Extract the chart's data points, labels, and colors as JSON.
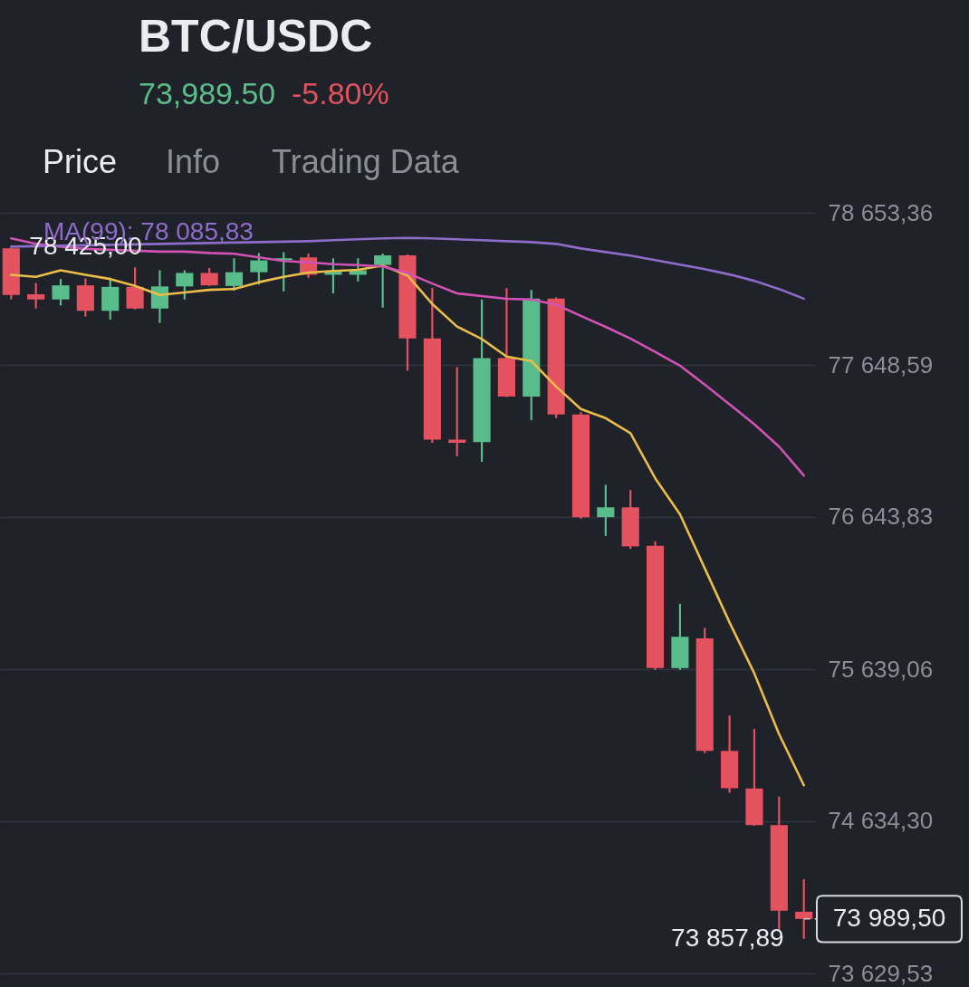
{
  "chart_data": {
    "type": "candlestick",
    "title": "BTC/USDC",
    "subtitle": "73,989.50",
    "annotations": [
      "-5.80%",
      "Price",
      "Info",
      "Trading Data",
      "78 425,00",
      "73 857,89"
    ],
    "categories": [
      null,
      null,
      null,
      null,
      null,
      null,
      null,
      null,
      null,
      null,
      null,
      null,
      null,
      null,
      null,
      null,
      null,
      null,
      null,
      null,
      null,
      null,
      null,
      null,
      null,
      null,
      null,
      null,
      null,
      null,
      null,
      null,
      null
    ],
    "ohlc": [
      [
        78418,
        78425,
        78081,
        78110
      ],
      [
        78115,
        78190,
        78021,
        78081
      ],
      [
        78081,
        78216,
        78041,
        78174
      ],
      [
        78174,
        78220,
        77968,
        78006
      ],
      [
        78006,
        78224,
        77948,
        78164
      ],
      [
        78164,
        78293,
        78015,
        78021
      ],
      [
        78021,
        78274,
        77926,
        78167
      ],
      [
        78167,
        78274,
        78081,
        78256
      ],
      [
        78256,
        78289,
        78170,
        78174
      ],
      [
        78170,
        78353,
        78140,
        78261
      ],
      [
        78261,
        78387,
        78180,
        78339
      ],
      [
        78341,
        78393,
        78134,
        78353
      ],
      [
        78359,
        78384,
        78224,
        78244
      ],
      [
        78244,
        78353,
        78121,
        78264
      ],
      [
        78244,
        78353,
        78200,
        78274
      ],
      [
        78309,
        78384,
        78027,
        78372
      ],
      [
        78372,
        78378,
        77610,
        77823
      ],
      [
        77823,
        78158,
        77134,
        77155
      ],
      [
        77155,
        77634,
        77045,
        77134
      ],
      [
        77139,
        78081,
        77009,
        77694
      ],
      [
        77694,
        78156,
        77436,
        77440
      ],
      [
        77440,
        78144,
        77283,
        78087
      ],
      [
        78087,
        78095,
        77297,
        77321
      ],
      [
        77321,
        77337,
        76633,
        76643
      ],
      [
        76643,
        76857,
        76519,
        76708
      ],
      [
        76708,
        76821,
        76434,
        76450
      ],
      [
        76454,
        76484,
        75634,
        75646
      ],
      [
        75646,
        76071,
        75634,
        75853
      ],
      [
        75843,
        75912,
        75085,
        75099
      ],
      [
        75099,
        75333,
        74823,
        74853
      ],
      [
        74851,
        75244,
        74605,
        74609
      ],
      [
        74609,
        74797,
        73920,
        74043
      ],
      [
        74037,
        74252,
        73857.89,
        73989.5
      ]
    ],
    "colors": [
      "#e5525f",
      "#e5525f",
      "#58bd8a",
      "#e5525f",
      "#58bd8a",
      "#e5525f",
      "#58bd8a",
      "#58bd8a",
      "#e5525f",
      "#58bd8a",
      "#58bd8a",
      "#58bd8a",
      "#e5525f",
      "#58bd8a",
      "#58bd8a",
      "#58bd8a",
      "#e5525f",
      "#e5525f",
      "#e5525f",
      "#58bd8a",
      "#e5525f",
      "#58bd8a",
      "#e5525f",
      "#e5525f",
      "#58bd8a",
      "#e5525f",
      "#e5525f",
      "#58bd8a",
      "#e5525f",
      "#e5525f",
      "#e5525f",
      "#e5525f",
      "#e5525f"
    ],
    "series": [
      {
        "type": "line",
        "color": "#ebbd48",
        "values": [
          78244,
          78230,
          78274,
          78244,
          78216,
          78170,
          78111,
          78127,
          78144,
          78150,
          78195,
          78230,
          78259,
          78269,
          78277,
          78305,
          78240,
          78051,
          77902,
          77820,
          77704,
          77674,
          77506,
          77357,
          77297,
          77198,
          76900,
          76662,
          76305,
          75948,
          75611,
          75210,
          74872
        ]
      },
      {
        "type": "line",
        "color": "#d152b4",
        "values": [
          78484,
          78448,
          78430,
          78415,
          78409,
          78403,
          78397,
          78397,
          78388,
          78383,
          78359,
          78335,
          78326,
          78314,
          78308,
          78299,
          78255,
          78186,
          78121,
          78103,
          78085,
          78081,
          78046,
          77972,
          77900,
          77823,
          77734,
          77644,
          77519,
          77388,
          77257,
          77109,
          76918
        ]
      },
      {
        "type": "line",
        "name": "MA(99): 78 085,83",
        "color": "#8e6cc9",
        "values": [
          78430,
          78433,
          78436,
          78439,
          78442,
          78445,
          78448,
          78451,
          78454,
          78457,
          78460,
          78463,
          78466,
          78472,
          78478,
          78484,
          78487,
          78484,
          78478,
          78472,
          78466,
          78460,
          78448,
          78418,
          78394,
          78371,
          78341,
          78311,
          78281,
          78246,
          78204,
          78150,
          78085.83
        ]
      }
    ],
    "ylim": [
      73629.53,
      78653.36
    ],
    "yticks": [
      {
        "value": 73629.53,
        "label": "73 629,53"
      },
      {
        "value": 74634.3,
        "label": "74 634,30"
      },
      {
        "value": 75639.06,
        "label": "75 639,06"
      },
      {
        "value": 76643.83,
        "label": "76 643,83"
      },
      {
        "value": 77648.59,
        "label": "77 648,59"
      },
      {
        "value": 78653.36,
        "label": "78 653,36"
      }
    ],
    "grid": "y",
    "ref_lines": [
      {
        "axis": "y",
        "value": 73989.5,
        "label": "73 989,50",
        "line_style": "dashed"
      }
    ]
  }
}
